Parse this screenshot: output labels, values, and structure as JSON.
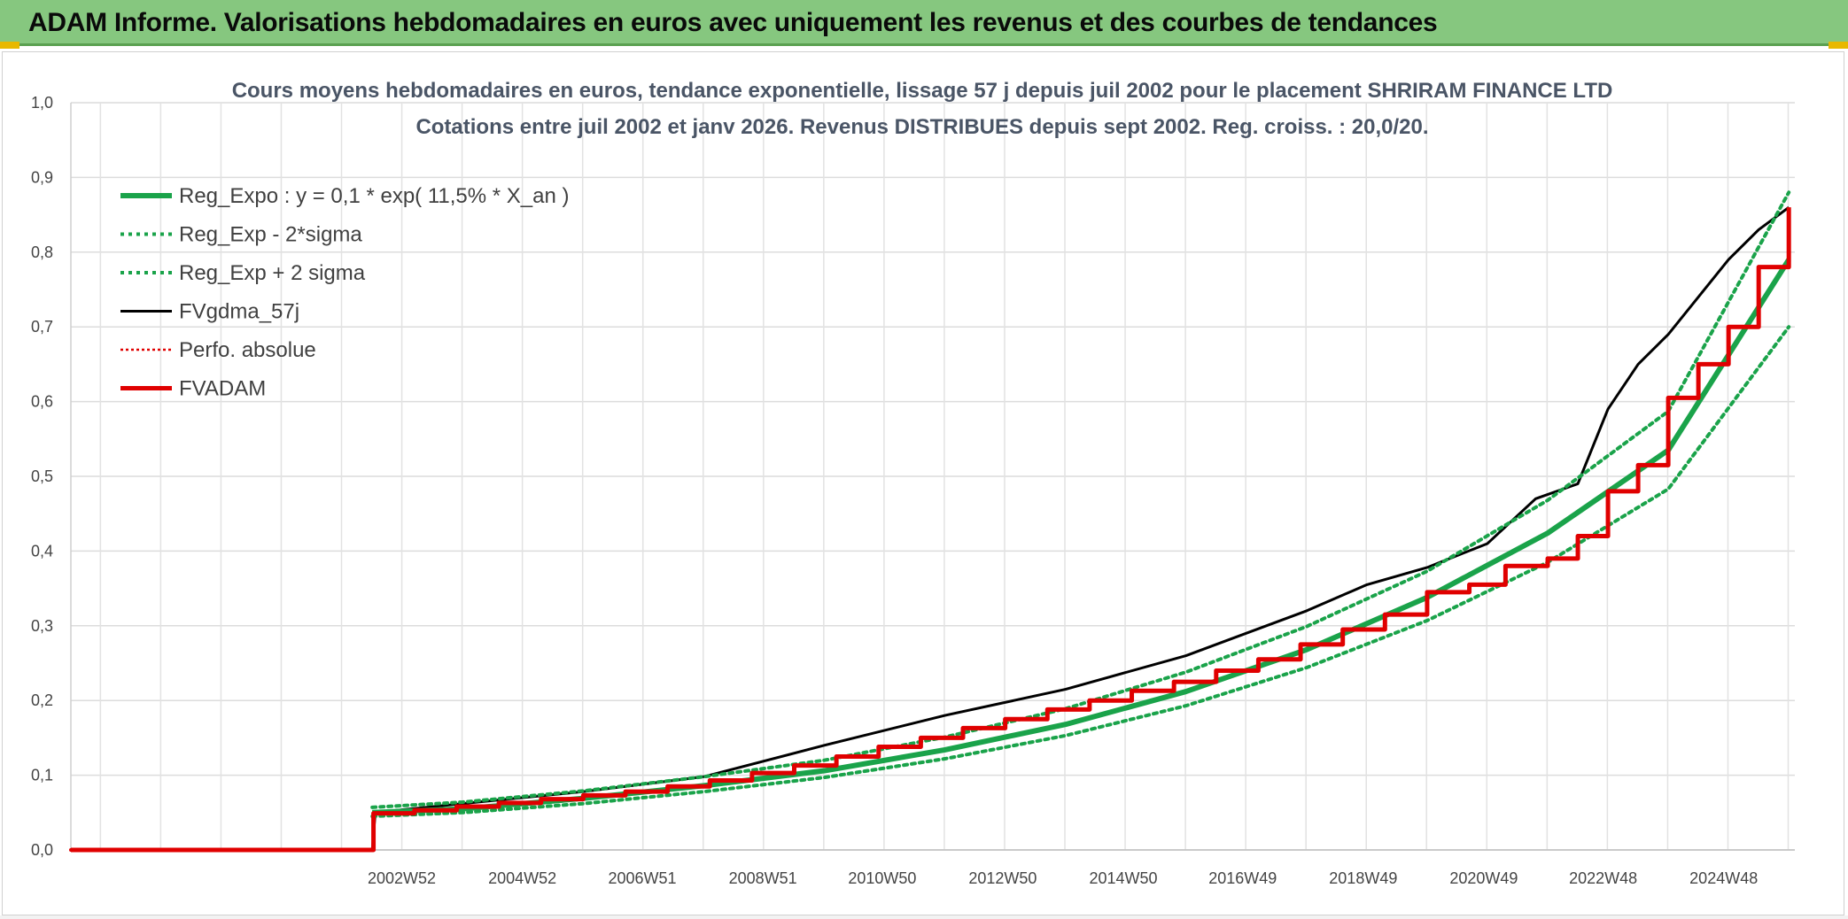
{
  "banner": {
    "title": "ADAM Informe. Valorisations hebdomadaires en euros avec uniquement les revenus et des courbes de tendances"
  },
  "colors": {
    "banner_bg": "#86c77f",
    "reg_expo": "#1aa34a",
    "fvgdma": "#000000",
    "perfo": "#e00000",
    "fvadam": "#e00000",
    "grid": "#dcdcdc"
  },
  "chart_data": {
    "type": "line",
    "title_lines": [
      "Cours moyens hebdomadaires en euros, tendance exponentielle, lissage 57 j depuis juil 2002 pour le placement SHRIRAM FINANCE LTD",
      "Cotations entre juil 2002  et janv 2026. Revenus DISTRIBUES depuis sept 2002. Reg. croiss. : 20,0/20."
    ],
    "y_ticks": [
      "0,0",
      "0,1",
      "0,2",
      "0,3",
      "0,4",
      "0,5",
      "0,6",
      "0,7",
      "0,8",
      "0,9",
      "1,0"
    ],
    "ylim": [
      0,
      1.0
    ],
    "x_ticks": [
      {
        "label": "2002W52",
        "year": 2002.99
      },
      {
        "label": "2004W52",
        "year": 2004.99
      },
      {
        "label": "2006W51",
        "year": 2006.98
      },
      {
        "label": "2008W51",
        "year": 2008.98
      },
      {
        "label": "2010W50",
        "year": 2010.96
      },
      {
        "label": "2012W50",
        "year": 2012.96
      },
      {
        "label": "2014W50",
        "year": 2014.96
      },
      {
        "label": "2016W49",
        "year": 2016.94
      },
      {
        "label": "2018W49",
        "year": 2018.94
      },
      {
        "label": "2020W49",
        "year": 2020.94
      },
      {
        "label": "2022W48",
        "year": 2022.92
      },
      {
        "label": "2024W48",
        "year": 2024.92
      }
    ],
    "xlim": [
      1997.5,
      2026.1
    ],
    "grid": true,
    "legend_position": "top-left",
    "series": [
      {
        "name": "Reg_Expo : y = 0,1 * exp( 11,5% *  X_an )",
        "style": "solid-thick",
        "color": "#1aa34a",
        "x": [
          2002.5,
          2004,
          2006,
          2008,
          2010,
          2012,
          2014,
          2016,
          2018,
          2020,
          2022,
          2024,
          2026
        ],
        "y": [
          0.05,
          0.055,
          0.069,
          0.086,
          0.106,
          0.134,
          0.168,
          0.212,
          0.268,
          0.338,
          0.424,
          0.535,
          0.79
        ]
      },
      {
        "name": "Reg_Exp - 2*sigma",
        "style": "dotted",
        "color": "#1aa34a",
        "x": [
          2002.5,
          2004,
          2006,
          2008,
          2010,
          2012,
          2014,
          2016,
          2018,
          2020,
          2022,
          2024,
          2026
        ],
        "y": [
          0.045,
          0.05,
          0.062,
          0.078,
          0.097,
          0.122,
          0.153,
          0.193,
          0.244,
          0.307,
          0.385,
          0.483,
          0.7
        ]
      },
      {
        "name": "Reg_Exp + 2 sigma",
        "style": "dotted",
        "color": "#1aa34a",
        "x": [
          2002.5,
          2004,
          2006,
          2008,
          2010,
          2012,
          2014,
          2016,
          2018,
          2020,
          2022,
          2024,
          2026
        ],
        "y": [
          0.057,
          0.064,
          0.079,
          0.098,
          0.12,
          0.151,
          0.189,
          0.238,
          0.299,
          0.373,
          0.468,
          0.587,
          0.88
        ]
      },
      {
        "name": "FVgdma_57j",
        "style": "solid",
        "color": "#000000",
        "x": [
          1997.5,
          2002.5,
          2002.55,
          2004,
          2006,
          2008,
          2010,
          2012,
          2014,
          2016,
          2018,
          2019,
          2020,
          2021,
          2021.8,
          2022.5,
          2023,
          2023.5,
          2024,
          2024.5,
          2025,
          2025.5,
          2026
        ],
        "y": [
          0,
          0,
          0.05,
          0.062,
          0.078,
          0.098,
          0.14,
          0.18,
          0.215,
          0.26,
          0.32,
          0.355,
          0.378,
          0.41,
          0.47,
          0.49,
          0.59,
          0.65,
          0.69,
          0.74,
          0.79,
          0.83,
          0.86
        ]
      },
      {
        "name": "Perfo. absolue",
        "style": "dotted",
        "color": "#e00000",
        "x": [
          1997.5,
          2002.5
        ],
        "y": [
          0,
          0
        ]
      },
      {
        "name": "FVADAM",
        "style": "step-thick",
        "color": "#e00000",
        "x": [
          1997.5,
          2002.5,
          2002.52,
          2003.2,
          2003.9,
          2004.6,
          2005.3,
          2006,
          2006.7,
          2007.4,
          2008.1,
          2008.8,
          2009.5,
          2010.2,
          2010.9,
          2011.6,
          2012.3,
          2013,
          2013.7,
          2014.4,
          2015.1,
          2015.8,
          2016.5,
          2017.2,
          2017.9,
          2018.6,
          2019.3,
          2020,
          2020.7,
          2021.3,
          2022,
          2022.5,
          2023,
          2023.5,
          2024,
          2024.5,
          2025,
          2025.5,
          2026
        ],
        "y": [
          0,
          0,
          0.049,
          0.053,
          0.058,
          0.063,
          0.068,
          0.073,
          0.078,
          0.085,
          0.093,
          0.103,
          0.113,
          0.125,
          0.138,
          0.15,
          0.163,
          0.175,
          0.188,
          0.2,
          0.213,
          0.225,
          0.24,
          0.255,
          0.275,
          0.295,
          0.315,
          0.345,
          0.355,
          0.38,
          0.39,
          0.42,
          0.48,
          0.515,
          0.605,
          0.65,
          0.7,
          0.78,
          0.86
        ]
      }
    ]
  }
}
